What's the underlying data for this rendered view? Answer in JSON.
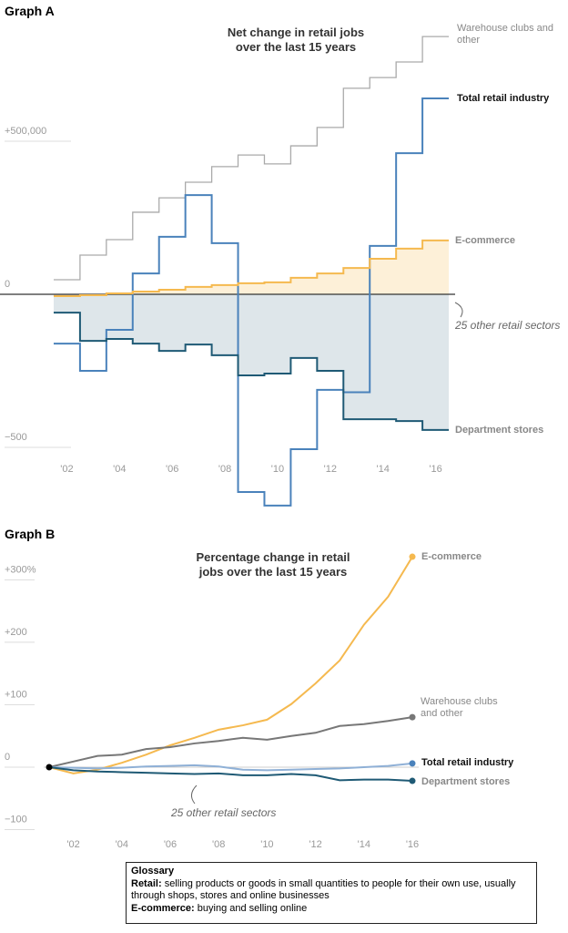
{
  "chart_data": [
    {
      "type": "step",
      "heading": "Graph A",
      "title": "Net change in retail jobs over the last 15 years",
      "x": [
        2002,
        2003,
        2004,
        2005,
        2006,
        2007,
        2008,
        2009,
        2010,
        2011,
        2012,
        2013,
        2014,
        2015,
        2016
      ],
      "xlim": [
        2001,
        2017
      ],
      "xticks": [
        {
          "value": 2002,
          "label": "'02"
        },
        {
          "value": 2004,
          "label": "'04"
        },
        {
          "value": 2006,
          "label": "'06"
        },
        {
          "value": 2008,
          "label": "'08"
        },
        {
          "value": 2010,
          "label": "'10"
        },
        {
          "value": 2012,
          "label": "'12"
        },
        {
          "value": 2014,
          "label": "'14"
        },
        {
          "value": 2016,
          "label": "'16"
        }
      ],
      "ylim": [
        -700000,
        850000
      ],
      "yticks": [
        {
          "value": 500000,
          "label": "+500,000"
        },
        0,
        {
          "value": -500000,
          "label": "−500"
        }
      ],
      "annotations": [
        "25 other retail sectors"
      ],
      "series": [
        {
          "name": "Warehouse clubs and other",
          "color": "#aaaaaa",
          "values": [
            47600,
            128000,
            178600,
            268000,
            315000,
            366000,
            417000,
            455000,
            426000,
            485000,
            545000,
            673000,
            708000,
            759000,
            842000
          ]
        },
        {
          "name": "Total retail industry",
          "color": "#4a82bb",
          "values": [
            -161000,
            -250000,
            -116000,
            68000,
            188000,
            324000,
            167000,
            -646000,
            -690000,
            -506000,
            -312000,
            -320000,
            158000,
            461000,
            640000
          ]
        },
        {
          "name": "E-commerce",
          "color": "#f5b94f",
          "values": [
            -6000,
            -3000,
            3000,
            9000,
            15000,
            24000,
            30000,
            36000,
            39000,
            54000,
            68000,
            86000,
            116000,
            149000,
            176000
          ]
        },
        {
          "name": "Department stores",
          "color": "#1f5a75",
          "values": [
            -60000,
            -152000,
            -146000,
            -161000,
            -185000,
            -164000,
            -199000,
            -265000,
            -259000,
            -208000,
            -250000,
            -408000,
            -408000,
            -414000,
            -443000
          ]
        }
      ]
    },
    {
      "type": "line",
      "heading": "Graph B",
      "title": "Percentage change in retail jobs over the last 15 years",
      "x": [
        2001,
        2002,
        2003,
        2004,
        2005,
        2006,
        2007,
        2008,
        2009,
        2010,
        2011,
        2012,
        2013,
        2014,
        2015,
        2016
      ],
      "xlim": [
        2001,
        2016
      ],
      "xticks": [
        {
          "value": 2002,
          "label": "'02"
        },
        {
          "value": 2004,
          "label": "'04"
        },
        {
          "value": 2006,
          "label": "'06"
        },
        {
          "value": 2008,
          "label": "'08"
        },
        {
          "value": 2010,
          "label": "'10"
        },
        {
          "value": 2012,
          "label": "'12"
        },
        {
          "value": 2014,
          "label": "'14"
        },
        {
          "value": 2016,
          "label": "'16"
        }
      ],
      "ylim": [
        -100,
        340
      ],
      "yticks": [
        {
          "value": 300,
          "label": "+300%"
        },
        {
          "value": 200,
          "label": "+200"
        },
        {
          "value": 100,
          "label": "+100"
        },
        0,
        {
          "value": -100,
          "label": "−100"
        }
      ],
      "annotations": [
        "25 other retail sectors"
      ],
      "series": [
        {
          "name": "E-commerce",
          "color": "#f5b94f",
          "values": [
            0,
            -10,
            -4,
            7,
            20,
            35,
            47,
            60,
            67,
            76,
            101,
            134,
            171,
            228,
            273,
            337
          ]
        },
        {
          "name": "Warehouse clubs and other",
          "color": "#777777",
          "values": [
            0,
            9,
            18,
            20,
            29,
            32,
            38,
            42,
            47,
            44,
            50,
            55,
            66,
            69,
            74,
            80
          ]
        },
        {
          "name": "Total retail industry",
          "color": "#8fb0d6",
          "values": [
            0,
            -1,
            -2,
            -1,
            1,
            2,
            3,
            1,
            -4,
            -5,
            -4,
            -3,
            -2,
            0,
            2,
            6
          ]
        },
        {
          "name": "Department stores",
          "color": "#1f5a75",
          "values": [
            0,
            -5,
            -7,
            -8,
            -9,
            -10,
            -11,
            -10,
            -13,
            -13,
            -11,
            -13,
            -21,
            -20,
            -20,
            -22
          ]
        }
      ]
    }
  ],
  "glossary": {
    "title": "Glossary",
    "entries": [
      {
        "term": "Retail:",
        "text": "selling products or goods in small quantities to people for their own use, usually through shops, stores and online businesses"
      },
      {
        "term": "E-commerce:",
        "text": "buying and selling online"
      }
    ]
  }
}
